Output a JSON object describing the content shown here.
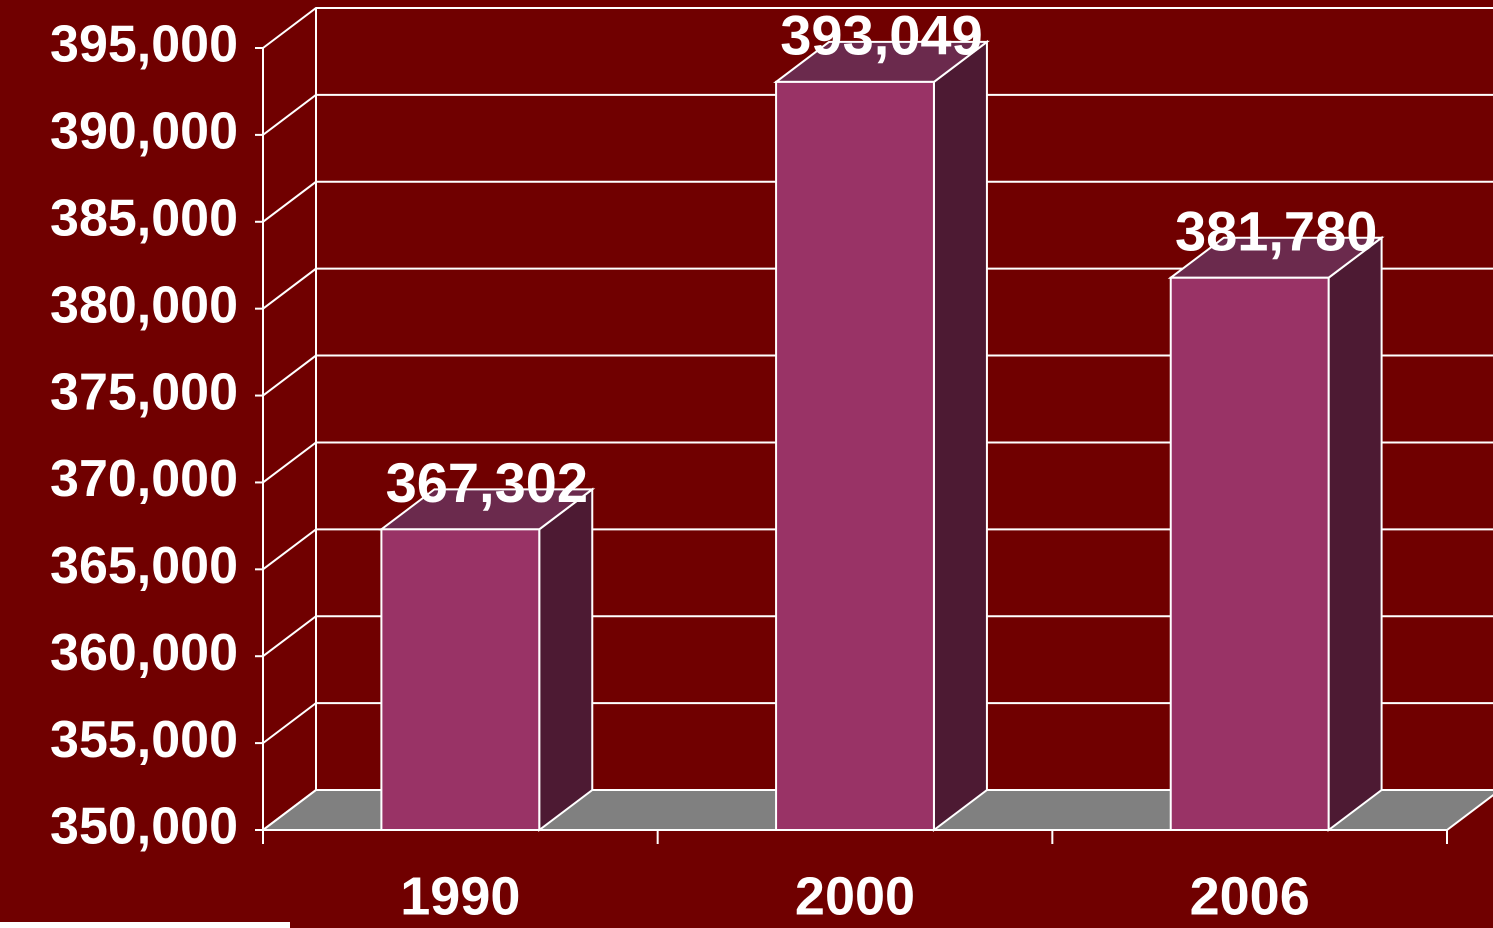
{
  "chart_data": {
    "type": "bar3d",
    "categories": [
      "1990",
      "2000",
      "2006"
    ],
    "values": [
      367302,
      393049,
      381780
    ],
    "value_labels": [
      "367,302",
      "393,049",
      "381,780"
    ],
    "color": "#993366",
    "ylim": [
      350000,
      395000
    ],
    "yticks": [
      {
        "value": 350000,
        "label": "350,000"
      },
      {
        "value": 355000,
        "label": "355,000"
      },
      {
        "value": 360000,
        "label": "360,000"
      },
      {
        "value": 365000,
        "label": "365,000"
      },
      {
        "value": 370000,
        "label": "370,000"
      },
      {
        "value": 375000,
        "label": "375,000"
      },
      {
        "value": 380000,
        "label": "380,000"
      },
      {
        "value": 385000,
        "label": "385,000"
      },
      {
        "value": 390000,
        "label": "390,000"
      },
      {
        "value": 395000,
        "label": "395,000"
      }
    ],
    "grid": true
  }
}
